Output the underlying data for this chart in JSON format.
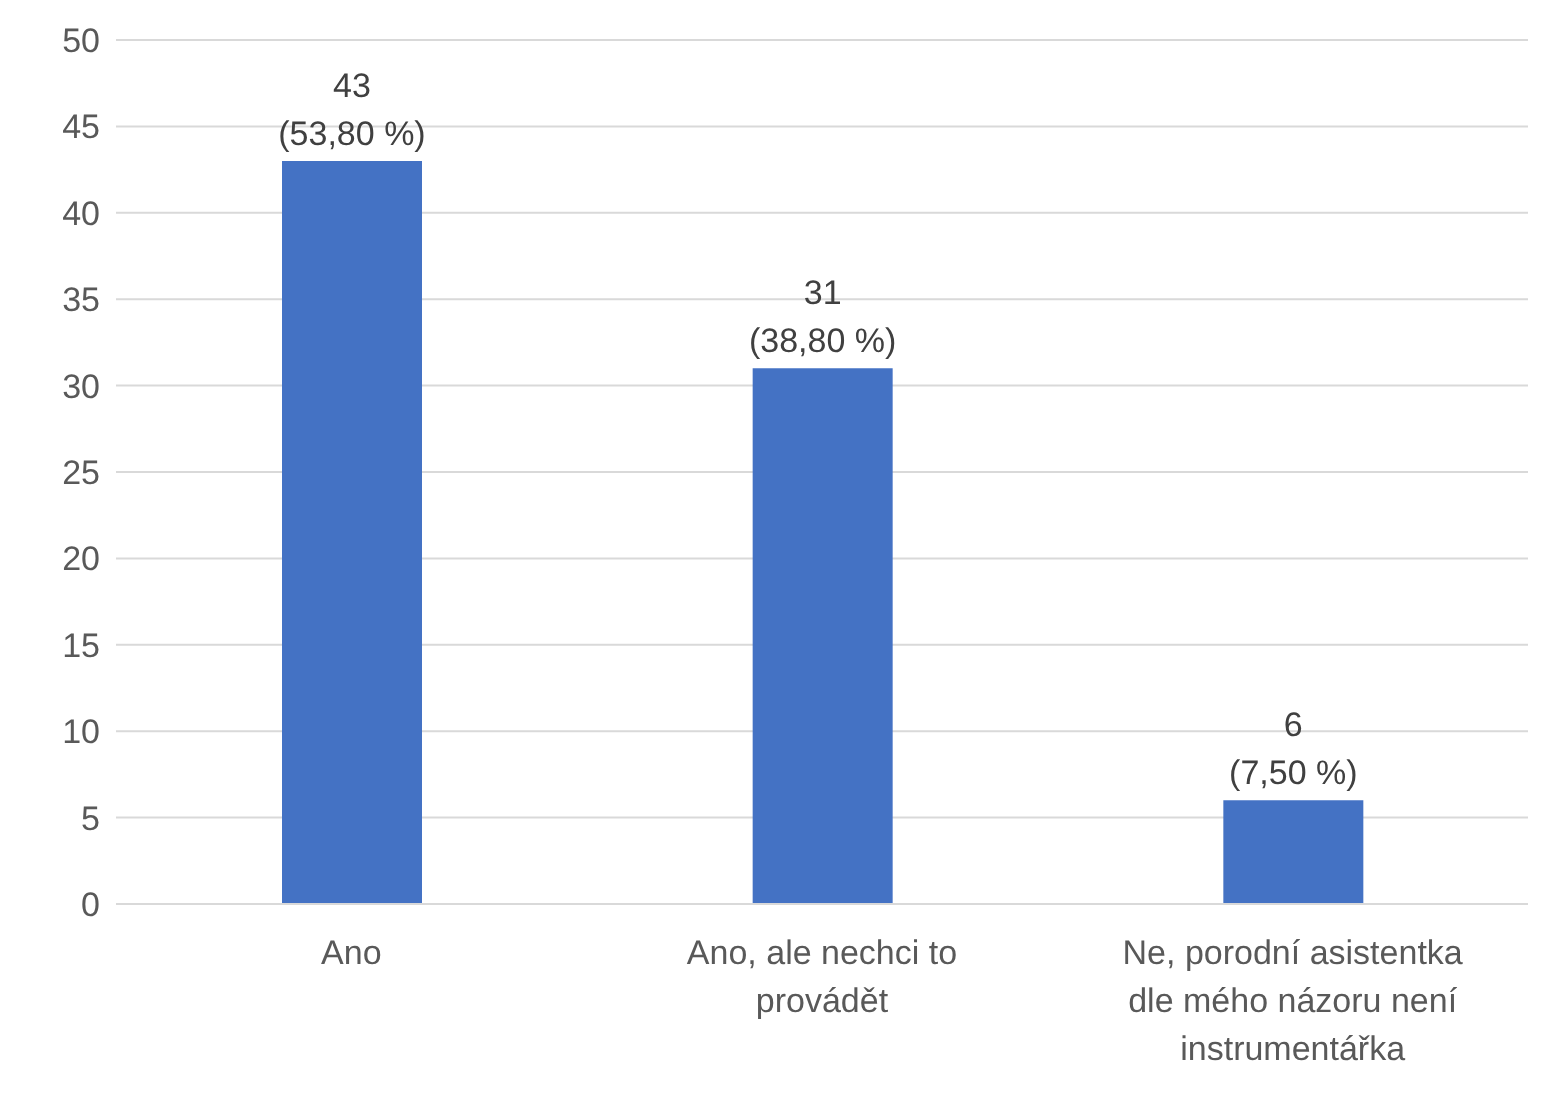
{
  "chart_data": {
    "type": "bar",
    "categories": [
      "Ano",
      "Ano, ale nechci to provádět",
      "Ne, porodní asistentka dle mého názoru není instrumentářka"
    ],
    "values": [
      43,
      31,
      6
    ],
    "value_labels": [
      "43\n(53,80 %)",
      "31\n(38,80 %)",
      "6\n(7,50 %)"
    ],
    "color": "#4472c4",
    "ylim": [
      0,
      50
    ],
    "yticks": [
      0,
      5,
      10,
      15,
      20,
      25,
      30,
      35,
      40,
      45,
      50
    ],
    "grid": "y",
    "legend": false
  }
}
